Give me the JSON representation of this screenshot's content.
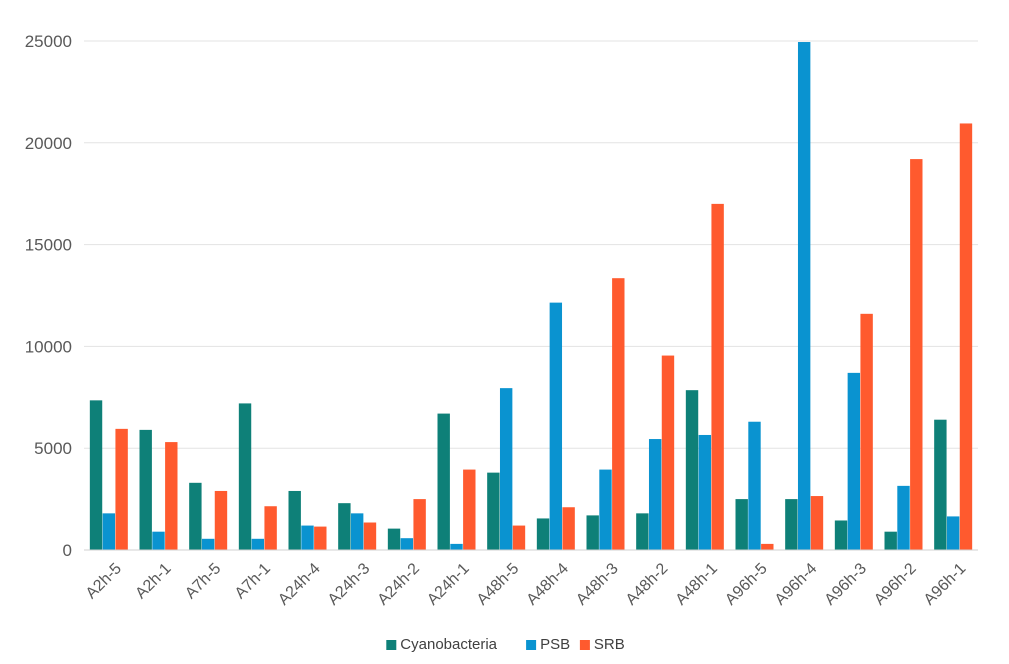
{
  "chart_data": {
    "type": "bar",
    "title": "",
    "xlabel": "",
    "ylabel": "",
    "ylim": [
      0,
      25000
    ],
    "yticks": [
      0,
      5000,
      10000,
      15000,
      20000,
      25000
    ],
    "grid": true,
    "legend_position": "bottom",
    "categories": [
      "A2h-5",
      "A2h-1",
      "A7h-5",
      "A7h-1",
      "A24h-4",
      "A24h-3",
      "A24h-2",
      "A24h-1",
      "A48h-5",
      "A48h-4",
      "A48h-3",
      "A48h-2",
      "A48h-1",
      "A96h-5",
      "A96h-4",
      "A96h-3",
      "A96h-2",
      "A96h-1"
    ],
    "series": [
      {
        "name": "Cyanobacteria",
        "color": "#0E8078",
        "values": [
          7350,
          5900,
          3300,
          7200,
          2900,
          2300,
          1050,
          6700,
          3800,
          1550,
          1700,
          1800,
          7850,
          2500,
          2500,
          1450,
          900,
          6400
        ]
      },
      {
        "name": "PSB",
        "color": "#0A93D0",
        "values": [
          1800,
          900,
          550,
          550,
          1200,
          1800,
          580,
          300,
          7950,
          12150,
          3950,
          5450,
          5650,
          6300,
          24950,
          8700,
          3150,
          1650
        ]
      },
      {
        "name": "SRB",
        "color": "#FF5A2E",
        "values": [
          5950,
          5300,
          2900,
          2150,
          1150,
          1350,
          2500,
          3950,
          1200,
          2100,
          13350,
          9550,
          17000,
          300,
          2650,
          11600,
          19200,
          20950
        ]
      }
    ]
  }
}
